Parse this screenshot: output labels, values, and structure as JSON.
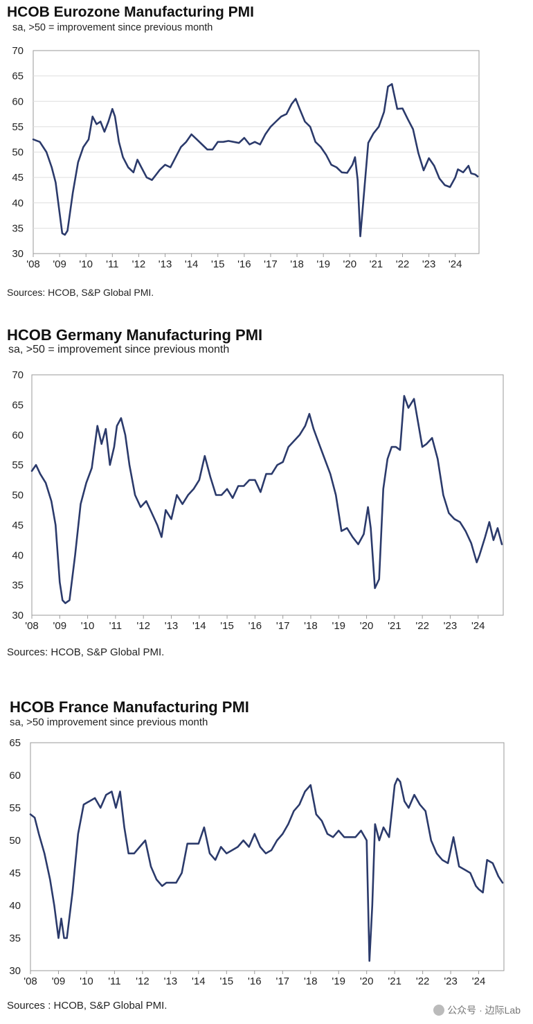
{
  "chart_data": [
    {
      "type": "line",
      "title": "HCOB Eurozone Manufacturing PMI",
      "subtitle": "sa, >50 = improvement since previous month",
      "source": "Sources: HCOB, S&P Global PMI.",
      "ylim": [
        30,
        70
      ],
      "yticks": [
        "30",
        "35",
        "40",
        "45",
        "50",
        "55",
        "60",
        "65",
        "70"
      ],
      "xlim": [
        2008.0,
        2024.9
      ],
      "xticks": [
        "'08",
        "'09",
        "'10",
        "'11",
        "'12",
        "'13",
        "'14",
        "'15",
        "'16",
        "'17",
        "'18",
        "'19",
        "'20",
        "'21",
        "'22",
        "'23",
        "'24"
      ],
      "grid": "horizontal",
      "color": "#2b3a6b",
      "series": [
        {
          "x": [
            2008.0,
            2008.25,
            2008.5,
            2008.7,
            2008.85,
            2009.0,
            2009.1,
            2009.2,
            2009.3,
            2009.5,
            2009.7,
            2009.9,
            2010.1,
            2010.25,
            2010.4,
            2010.55,
            2010.7,
            2010.85,
            2011.0,
            2011.1,
            2011.25,
            2011.4,
            2011.6,
            2011.8,
            2011.95,
            2012.1,
            2012.3,
            2012.5,
            2012.65,
            2012.8,
            2013.0,
            2013.2,
            2013.4,
            2013.6,
            2013.8,
            2014.0,
            2014.2,
            2014.4,
            2014.6,
            2014.8,
            2015.0,
            2015.2,
            2015.4,
            2015.6,
            2015.8,
            2016.0,
            2016.2,
            2016.4,
            2016.6,
            2016.8,
            2017.0,
            2017.2,
            2017.4,
            2017.6,
            2017.8,
            2017.95,
            2018.1,
            2018.3,
            2018.5,
            2018.7,
            2018.9,
            2019.1,
            2019.3,
            2019.5,
            2019.7,
            2019.9,
            2020.1,
            2020.2,
            2020.3,
            2020.4,
            2020.5,
            2020.7,
            2020.9,
            2021.1,
            2021.3,
            2021.45,
            2021.6,
            2021.8,
            2022.0,
            2022.2,
            2022.4,
            2022.6,
            2022.8,
            2023.0,
            2023.2,
            2023.4,
            2023.6,
            2023.8,
            2024.0,
            2024.1,
            2024.3,
            2024.5,
            2024.6,
            2024.75,
            2024.85
          ],
          "y": [
            52.5,
            52,
            50,
            47,
            44,
            38,
            34,
            33.7,
            34.5,
            42,
            48,
            51,
            52.5,
            57,
            55.5,
            56,
            54,
            56,
            58.5,
            57,
            52,
            49,
            47,
            46,
            48.5,
            47,
            45,
            44.5,
            45.5,
            46.5,
            47.5,
            47,
            49,
            51,
            52,
            53.5,
            52.5,
            51.5,
            50.5,
            50.5,
            52,
            52,
            52.2,
            52,
            51.8,
            52.8,
            51.5,
            52,
            51.5,
            53.5,
            55,
            56,
            57,
            57.5,
            59.5,
            60.5,
            58.5,
            56,
            55,
            52,
            51,
            49.5,
            47.5,
            47,
            46,
            45.9,
            47.5,
            49,
            44.5,
            33.4,
            39.4,
            51.8,
            53.7,
            55,
            57.9,
            62.9,
            63.4,
            58.5,
            58.6,
            56.5,
            54.5,
            49.8,
            46.4,
            48.8,
            47.3,
            44.8,
            43.5,
            43.1,
            45,
            46.6,
            46,
            47.3,
            45.8,
            45.6,
            45.2
          ]
        }
      ]
    },
    {
      "type": "line",
      "title": "HCOB Germany Manufacturing PMI",
      "subtitle": "sa, >50 = improvement since previous month",
      "source": "Sources: HCOB, S&P Global PMI.",
      "ylim": [
        30,
        70
      ],
      "yticks": [
        "30",
        "35",
        "40",
        "45",
        "50",
        "55",
        "60",
        "65",
        "70"
      ],
      "xlim": [
        2008.0,
        2024.9
      ],
      "xticks": [
        "'08",
        "'09",
        "'10",
        "'11",
        "'12",
        "'13",
        "'14",
        "'15",
        "'16",
        "'17",
        "'18",
        "'19",
        "'20",
        "'21",
        "'22",
        "'23",
        "'24"
      ],
      "grid": "none",
      "color": "#2b3a6b",
      "series": [
        {
          "x": [
            2008.0,
            2008.15,
            2008.3,
            2008.5,
            2008.7,
            2008.85,
            2009.0,
            2009.1,
            2009.2,
            2009.35,
            2009.55,
            2009.75,
            2009.95,
            2010.15,
            2010.35,
            2010.5,
            2010.65,
            2010.8,
            2010.95,
            2011.05,
            2011.2,
            2011.35,
            2011.5,
            2011.7,
            2011.9,
            2012.1,
            2012.3,
            2012.5,
            2012.65,
            2012.8,
            2013.0,
            2013.2,
            2013.4,
            2013.6,
            2013.8,
            2014.0,
            2014.2,
            2014.4,
            2014.6,
            2014.8,
            2015.0,
            2015.2,
            2015.4,
            2015.6,
            2015.8,
            2016.0,
            2016.2,
            2016.4,
            2016.6,
            2016.8,
            2017.0,
            2017.2,
            2017.4,
            2017.6,
            2017.8,
            2017.95,
            2018.1,
            2018.3,
            2018.5,
            2018.7,
            2018.9,
            2019.1,
            2019.3,
            2019.5,
            2019.7,
            2019.9,
            2020.05,
            2020.15,
            2020.3,
            2020.45,
            2020.6,
            2020.75,
            2020.9,
            2021.05,
            2021.2,
            2021.35,
            2021.5,
            2021.7,
            2021.85,
            2022.0,
            2022.15,
            2022.35,
            2022.55,
            2022.75,
            2022.95,
            2023.15,
            2023.35,
            2023.55,
            2023.75,
            2023.95,
            2024.05,
            2024.25,
            2024.4,
            2024.55,
            2024.7,
            2024.85
          ],
          "y": [
            54,
            55,
            53.5,
            52,
            49,
            45,
            35.5,
            32.5,
            32,
            32.5,
            40,
            48.5,
            52,
            54.5,
            61.5,
            58.5,
            61,
            55,
            58,
            61.5,
            62.8,
            60,
            55,
            50,
            48,
            49,
            47,
            45,
            43,
            47.5,
            46,
            50,
            48.5,
            50,
            51,
            52.5,
            56.5,
            53,
            50,
            50,
            51,
            49.5,
            51.5,
            51.5,
            52.5,
            52.5,
            50.5,
            53.5,
            53.5,
            55,
            55.5,
            58,
            59,
            60,
            61.5,
            63.5,
            61,
            58.5,
            56,
            53.5,
            50,
            44,
            44.5,
            43,
            41.8,
            43.5,
            48,
            44.5,
            34.5,
            36,
            51,
            56,
            58,
            58,
            57.5,
            66.5,
            64.5,
            66,
            62,
            58,
            58.5,
            59.5,
            56,
            50,
            47,
            46,
            45.5,
            44,
            42,
            38.8,
            40,
            43,
            45.5,
            42.5,
            44.5,
            41.8
          ]
        }
      ]
    },
    {
      "type": "line",
      "title": "HCOB France Manufacturing PMI",
      "subtitle": "sa, >50 improvement since previous month",
      "source": "Sources : HCOB, S&P Global PMI.",
      "ylim": [
        30,
        65
      ],
      "yticks": [
        "30",
        "35",
        "40",
        "45",
        "50",
        "55",
        "60",
        "65"
      ],
      "xlim": [
        2008.0,
        2024.9
      ],
      "xticks": [
        "'08",
        "'09",
        "'10",
        "'11",
        "'12",
        "'13",
        "'14",
        "'15",
        "'16",
        "'17",
        "'18",
        "'19",
        "'20",
        "'21",
        "'22",
        "'23",
        "'24"
      ],
      "grid": "none",
      "color": "#2b3a6b",
      "series": [
        {
          "x": [
            2008.0,
            2008.15,
            2008.3,
            2008.5,
            2008.7,
            2008.85,
            2009.0,
            2009.1,
            2009.2,
            2009.3,
            2009.5,
            2009.7,
            2009.9,
            2010.1,
            2010.3,
            2010.5,
            2010.7,
            2010.9,
            2011.05,
            2011.2,
            2011.35,
            2011.5,
            2011.7,
            2011.9,
            2012.1,
            2012.3,
            2012.5,
            2012.7,
            2012.85,
            2013.0,
            2013.2,
            2013.4,
            2013.6,
            2013.8,
            2014.0,
            2014.2,
            2014.4,
            2014.6,
            2014.8,
            2015.0,
            2015.2,
            2015.4,
            2015.6,
            2015.8,
            2016.0,
            2016.2,
            2016.4,
            2016.6,
            2016.8,
            2017.0,
            2017.2,
            2017.4,
            2017.6,
            2017.8,
            2018.0,
            2018.2,
            2018.4,
            2018.6,
            2018.8,
            2019.0,
            2019.2,
            2019.4,
            2019.6,
            2019.8,
            2020.0,
            2020.1,
            2020.2,
            2020.3,
            2020.45,
            2020.6,
            2020.8,
            2021.0,
            2021.1,
            2021.2,
            2021.35,
            2021.5,
            2021.7,
            2021.9,
            2022.1,
            2022.3,
            2022.5,
            2022.7,
            2022.9,
            2023.1,
            2023.3,
            2023.5,
            2023.7,
            2023.9,
            2024.0,
            2024.15,
            2024.3,
            2024.5,
            2024.7,
            2024.85
          ],
          "y": [
            54,
            53.5,
            51,
            48,
            44,
            40,
            35,
            38,
            35,
            35,
            42,
            51,
            55.5,
            56,
            56.5,
            55,
            57,
            57.5,
            55,
            57.5,
            52,
            48,
            48,
            49,
            50,
            46,
            44,
            43,
            43.5,
            43.5,
            43.5,
            45,
            49.5,
            49.5,
            49.5,
            52,
            48,
            47,
            49,
            48,
            48.5,
            49,
            50,
            49,
            51,
            49,
            48,
            48.5,
            50,
            51,
            52.5,
            54.5,
            55.5,
            57.5,
            58.5,
            54,
            53,
            51,
            50.5,
            51.5,
            50.5,
            50.5,
            50.5,
            51.5,
            50,
            31.5,
            40,
            52.5,
            50,
            52,
            50.5,
            58.5,
            59.5,
            59,
            56,
            55,
            57,
            55.5,
            54.5,
            50,
            48,
            47,
            46.5,
            50.5,
            46,
            45.5,
            45,
            43,
            42.5,
            42,
            47,
            46.5,
            44.5,
            43.5
          ]
        }
      ]
    }
  ],
  "watermark": {
    "text": "公众号 · 边际Lab",
    "icon": "wechat-icon"
  }
}
